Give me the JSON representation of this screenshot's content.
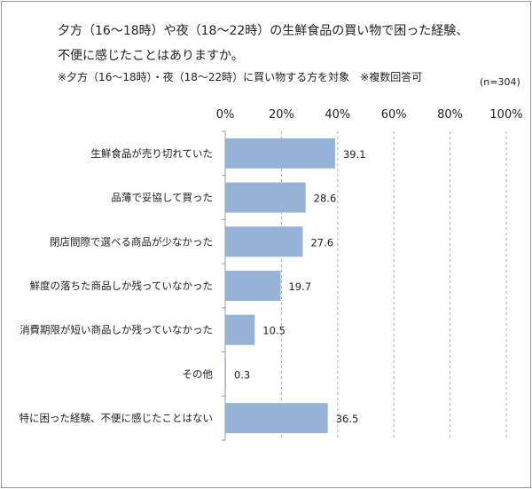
{
  "chart_data": {
    "type": "bar",
    "orientation": "horizontal",
    "title": "夕方（16～18時）や夜（18～22時）の生鮮食品の買い物で困った経験、",
    "title_line2": "不便に感じたことはありますか。",
    "subtitle": "※夕方（16～18時）・夜（18～22時）に買い物する方を対象　※複数回答可",
    "sample_size": "(n=304)",
    "categories": [
      "生鮮食品が売り切れていた",
      "品薄で妥協して買った",
      "閉店間際で選べる商品が少なかった",
      "鮮度の落ちた商品しか残っていなかった",
      "消費期限が短い商品しか残っていなかった",
      "その他",
      "特に困った経験、不便に感じたことはない"
    ],
    "values": [
      39.1,
      28.6,
      27.6,
      19.7,
      10.5,
      0.3,
      36.5
    ],
    "value_labels": [
      "39.1",
      "28.6",
      "27.6",
      "19.7",
      "10.5",
      "0.3",
      "36.5"
    ],
    "xlim": [
      0,
      100
    ],
    "xticks": [
      "0%",
      "20%",
      "40%",
      "60%",
      "80%",
      "100%"
    ],
    "xaxis_position": "top",
    "grid": true,
    "bar_color": "#95b3d7"
  }
}
